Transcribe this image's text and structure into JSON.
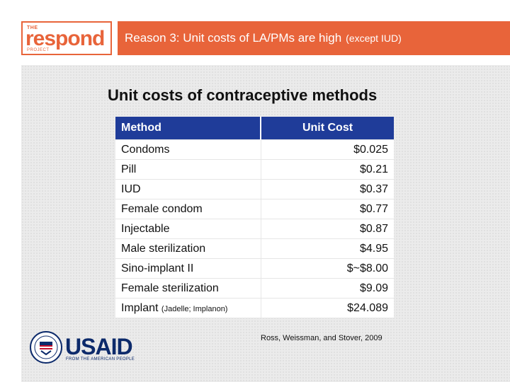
{
  "header": {
    "logo": {
      "the": "THE",
      "word": "respond",
      "project": "PROJECT"
    },
    "title_main": "Reason 3: Unit costs of LA/PMs are high",
    "title_sub": "(except IUD)",
    "accent_color": "#e8643a"
  },
  "content": {
    "title": "Unit costs of contraceptive methods",
    "table": {
      "headers": [
        "Method",
        "Unit Cost"
      ],
      "header_color": "#1f3c99",
      "rows": [
        {
          "method": "Condoms",
          "note": "",
          "cost": "$0.025"
        },
        {
          "method": "Pill",
          "note": "",
          "cost": "$0.21"
        },
        {
          "method": "IUD",
          "note": "",
          "cost": "$0.37"
        },
        {
          "method": "Female condom",
          "note": "",
          "cost": "$0.77"
        },
        {
          "method": "Injectable",
          "note": "",
          "cost": "$0.87"
        },
        {
          "method": "Male sterilization",
          "note": "",
          "cost": "$4.95"
        },
        {
          "method": "Sino-implant II",
          "note": "",
          "cost": "$~$8.00"
        },
        {
          "method": "Female sterilization",
          "note": "",
          "cost": "$9.09"
        },
        {
          "method": "Implant",
          "note": "(Jadelle; Implanon)",
          "cost": "$24.089"
        }
      ]
    },
    "citation": "Ross, Weissman, and Stover, 2009"
  },
  "footer": {
    "usaid_word": "USAID",
    "usaid_tagline": "FROM THE AMERICAN PEOPLE",
    "usaid_color": "#0c2a6b"
  }
}
